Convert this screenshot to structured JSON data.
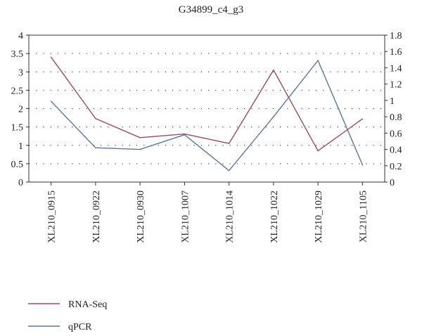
{
  "chart_data": {
    "type": "line",
    "title": "G34899_c4_g3",
    "xlabel": "",
    "categories": [
      "XL210_0915",
      "XL210_0922",
      "XL210_0930",
      "XL210_1007",
      "XL210_1014",
      "XL210_1022",
      "XL210_1029",
      "XL210_1105"
    ],
    "y_left": {
      "ylim": [
        0,
        4
      ],
      "ticks": [
        "0",
        "0.5",
        "1",
        "1.5",
        "2",
        "2.5",
        "3",
        "3.5",
        "4"
      ]
    },
    "y_right": {
      "ylim": [
        0,
        1.8
      ],
      "ticks": [
        "0",
        "0.2",
        "0.4",
        "0.6",
        "0.8",
        "1",
        "1.2",
        "1.4",
        "1.6",
        "1.8"
      ]
    },
    "grid": "dotted-horizontal",
    "legend_position": "bottom-left",
    "series": [
      {
        "name": "RNA-Seq",
        "axis": "left",
        "color": "#a0485e",
        "values": [
          3.4,
          1.73,
          1.21,
          1.31,
          1.05,
          3.05,
          0.85,
          1.72
        ]
      },
      {
        "name": "qPCR",
        "axis": "right",
        "color": "#5b7799",
        "values": [
          0.99,
          0.42,
          0.4,
          0.58,
          0.14,
          0.8,
          1.49,
          0.21
        ]
      }
    ]
  }
}
